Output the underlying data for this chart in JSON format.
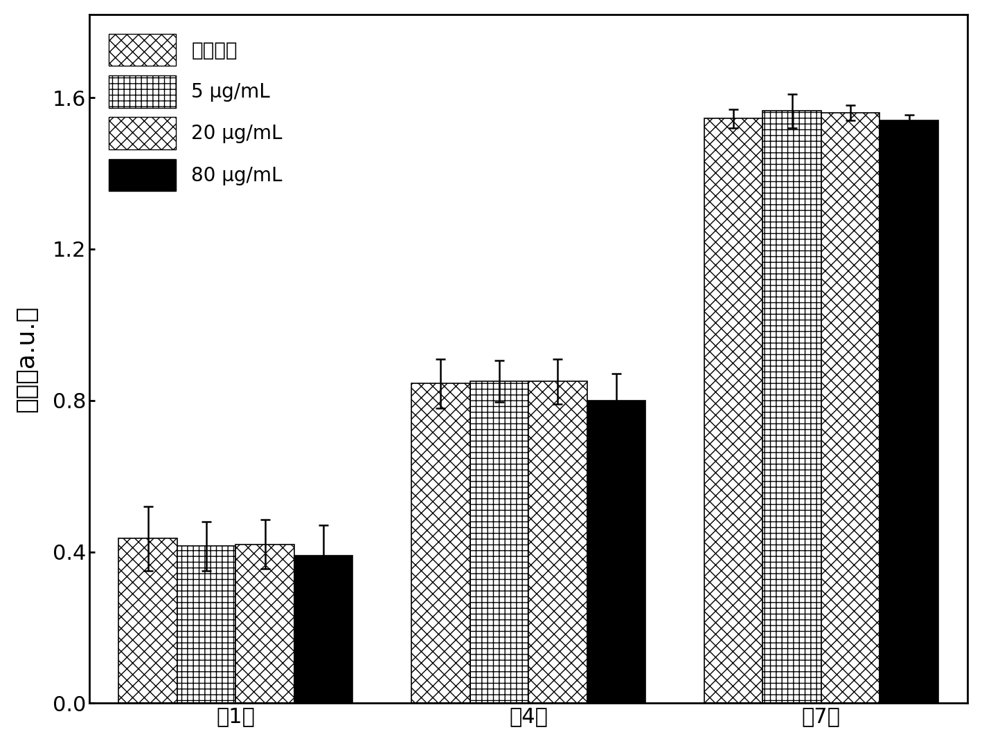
{
  "groups": [
    "第1天",
    "第4天",
    "第7天"
  ],
  "series": [
    {
      "label": "空白对照",
      "values": [
        0.435,
        0.845,
        1.545
      ],
      "errors": [
        0.085,
        0.065,
        0.025
      ],
      "hatch": "xx",
      "facecolor": "white",
      "edgecolor": "black"
    },
    {
      "label": "5 μg/mL",
      "values": [
        0.415,
        0.85,
        1.565
      ],
      "errors": [
        0.065,
        0.055,
        0.045
      ],
      "hatch": "++",
      "facecolor": "white",
      "edgecolor": "black"
    },
    {
      "label": "20 μg/mL",
      "values": [
        0.42,
        0.85,
        1.56
      ],
      "errors": [
        0.065,
        0.06,
        0.02
      ],
      "hatch": "//\\\\",
      "facecolor": "white",
      "edgecolor": "black"
    },
    {
      "label": "80 μg/mL",
      "values": [
        0.39,
        0.8,
        1.54
      ],
      "errors": [
        0.08,
        0.07,
        0.015
      ],
      "hatch": "....",
      "facecolor": "black",
      "edgecolor": "black"
    }
  ],
  "ylabel": "吸收（a.u.）",
  "ylim": [
    0,
    1.82
  ],
  "yticks": [
    0.0,
    0.4,
    0.8,
    1.2,
    1.6
  ],
  "bar_width": 0.2,
  "legend_fontsize": 20,
  "axis_fontsize": 26,
  "tick_fontsize": 22,
  "capsize": 5
}
